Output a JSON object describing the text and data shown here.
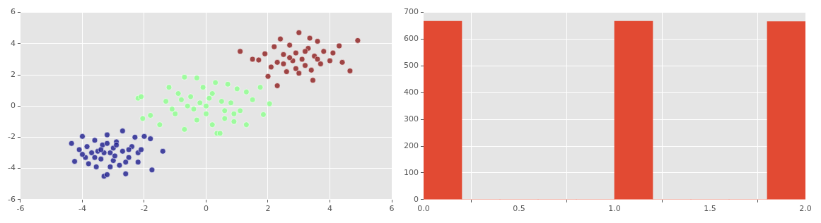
{
  "chart_data": [
    {
      "type": "scatter",
      "marker": "circle",
      "grid": true,
      "legend": false,
      "xlim": [
        -6,
        6
      ],
      "ylim": [
        -6,
        6
      ],
      "xticks": [
        -6,
        -4,
        -2,
        0,
        2,
        4,
        6
      ],
      "yticks": [
        -6,
        -4,
        -2,
        0,
        2,
        4,
        6
      ],
      "series": [
        {
          "color": "#1c1c8c",
          "x": [
            -4.35,
            -4.25,
            -4.1,
            -4.0,
            -3.9,
            -3.85,
            -3.8,
            -3.7,
            -3.6,
            -3.55,
            -3.5,
            -3.4,
            -3.35,
            -3.3,
            -3.2,
            -3.2,
            -3.1,
            -3.0,
            -3.0,
            -2.95,
            -2.9,
            -2.8,
            -2.7,
            -2.7,
            -2.6,
            -2.5,
            -2.4,
            -2.3,
            -2.2,
            -2.1,
            -2.0,
            -1.8,
            -1.75,
            -1.4,
            -3.3,
            -3.2,
            -2.6,
            -3.6,
            -3.1,
            -2.9,
            -3.4,
            -2.5,
            -4.0,
            -2.2
          ],
          "values": [
            -2.4,
            -3.55,
            -2.8,
            -1.95,
            -3.3,
            -2.6,
            -3.7,
            -3.0,
            -2.2,
            -3.9,
            -2.9,
            -3.4,
            -2.5,
            -4.5,
            -1.85,
            -4.4,
            -3.0,
            -2.7,
            -3.5,
            -3.2,
            -2.3,
            -3.8,
            -1.6,
            -2.9,
            -4.35,
            -3.3,
            -2.6,
            -2.0,
            -3.0,
            -2.8,
            -1.95,
            -2.1,
            -4.1,
            -2.9,
            -3.0,
            -2.4,
            -3.6,
            -3.3,
            -3.9,
            -2.5,
            -2.8,
            -2.8,
            -3.1,
            -3.6
          ]
        },
        {
          "color": "#8cff8c",
          "x": [
            -2.2,
            -2.1,
            -2.05,
            -1.8,
            -1.5,
            -1.3,
            -1.2,
            -1.0,
            -0.9,
            -0.7,
            -0.7,
            -0.6,
            -0.5,
            -0.3,
            -0.3,
            -0.2,
            -0.1,
            0.0,
            0.0,
            0.1,
            0.2,
            0.3,
            0.35,
            0.45,
            0.5,
            0.6,
            0.7,
            0.8,
            0.9,
            1.0,
            1.1,
            1.3,
            1.3,
            1.5,
            1.75,
            1.85,
            2.05,
            -0.4,
            0.2,
            -0.8,
            0.6,
            -1.1,
            0.9
          ],
          "values": [
            0.5,
            0.6,
            -0.8,
            -0.6,
            -1.2,
            0.3,
            1.2,
            -0.5,
            0.8,
            1.85,
            -1.5,
            0.0,
            0.6,
            1.8,
            -0.9,
            0.2,
            1.2,
            0.0,
            -0.5,
            0.5,
            -1.2,
            1.5,
            -1.75,
            -1.75,
            0.3,
            -0.8,
            1.4,
            0.2,
            -0.5,
            1.1,
            -0.3,
            -1.2,
            0.9,
            0.4,
            1.2,
            -0.55,
            0.15,
            -0.2,
            0.8,
            0.4,
            -0.3,
            -0.2,
            -1.0
          ]
        },
        {
          "color": "#8c1c1c",
          "x": [
            1.1,
            1.5,
            1.7,
            1.9,
            2.0,
            2.1,
            2.2,
            2.3,
            2.3,
            2.4,
            2.5,
            2.6,
            2.7,
            2.8,
            2.9,
            3.0,
            3.0,
            3.1,
            3.2,
            3.3,
            3.35,
            3.4,
            3.45,
            3.5,
            3.6,
            3.7,
            3.8,
            4.0,
            4.1,
            4.3,
            4.4,
            4.65,
            4.9,
            2.7,
            3.2,
            2.5,
            3.6,
            2.9
          ],
          "values": [
            3.5,
            3.0,
            2.95,
            3.35,
            1.9,
            2.5,
            3.8,
            1.3,
            2.8,
            4.3,
            3.3,
            2.2,
            3.9,
            2.9,
            3.4,
            4.7,
            2.1,
            3.0,
            2.6,
            3.7,
            4.35,
            2.3,
            1.65,
            3.2,
            4.15,
            2.7,
            3.5,
            2.9,
            3.4,
            3.85,
            2.8,
            2.25,
            4.2,
            3.1,
            3.5,
            2.7,
            3.0,
            2.4
          ]
        }
      ]
    },
    {
      "type": "histogram",
      "color": "#e24a33",
      "grid": true,
      "legend": false,
      "bins": [
        0,
        0.2,
        0.4,
        0.6,
        0.8,
        1.0,
        1.2,
        1.4,
        1.6,
        1.8,
        2.0
      ],
      "values": [
        667,
        0,
        0,
        0,
        0,
        667,
        0,
        0,
        0,
        666
      ],
      "xlim": [
        0,
        2
      ],
      "ylim": [
        0,
        700
      ],
      "xticks": [
        {
          "value": 0,
          "label": "0.0"
        },
        {
          "value": 0.5,
          "label": "0.5"
        },
        {
          "value": 1,
          "label": "1.0"
        },
        {
          "value": 1.5,
          "label": "1.5"
        },
        {
          "value": 2,
          "label": "2.0"
        }
      ],
      "yticks": [
        0,
        100,
        200,
        300,
        400,
        500,
        600,
        700
      ]
    }
  ]
}
